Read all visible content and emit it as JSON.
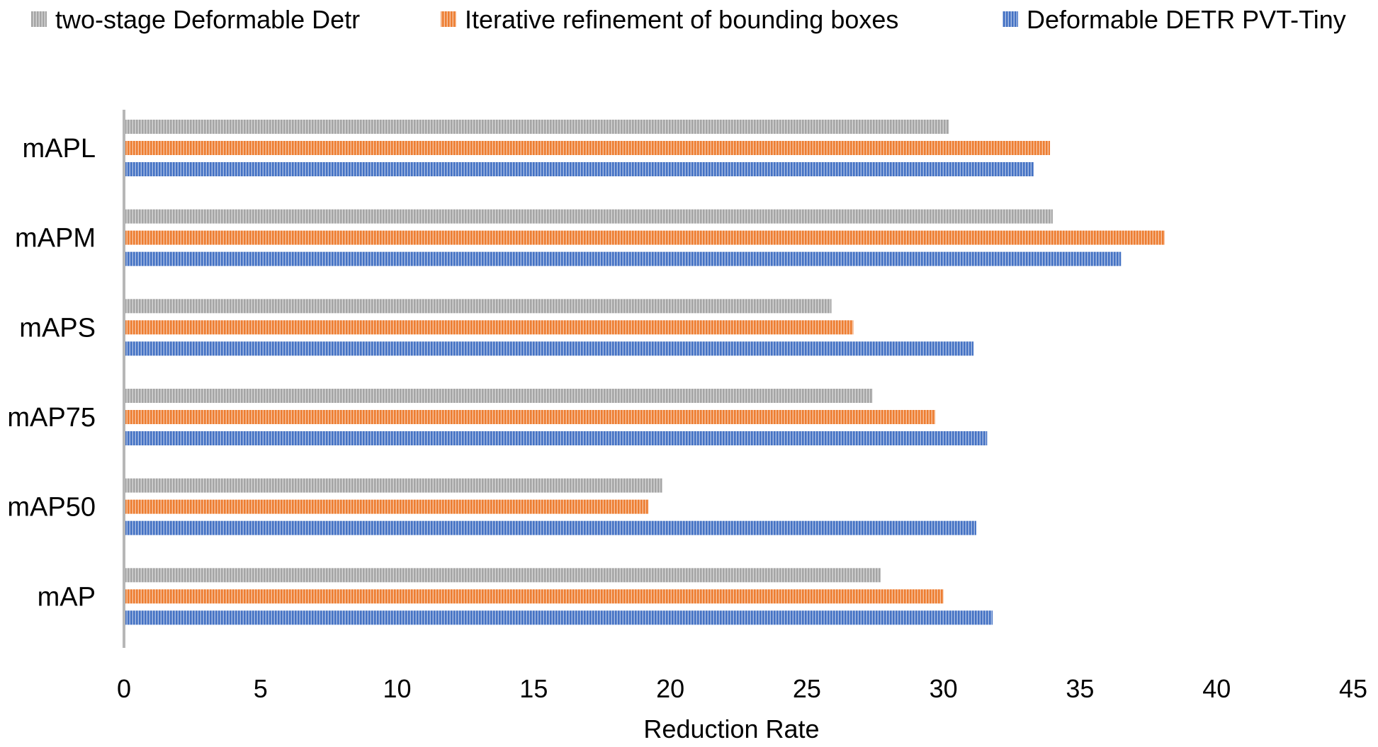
{
  "chart_data": {
    "type": "bar",
    "orientation": "horizontal",
    "title": "",
    "xlabel": "Reduction Rate",
    "ylabel": "",
    "xlim": [
      0,
      45
    ],
    "x_ticks": [
      0,
      5,
      10,
      15,
      20,
      25,
      30,
      35,
      40,
      45
    ],
    "grid": false,
    "legend_position": "top",
    "categories": [
      "mAPL",
      "mAPM",
      "mAPS",
      "mAP75",
      "mAP50",
      "mAP"
    ],
    "series": [
      {
        "name": "two-stage Deformable Detr",
        "color": "#a5a5a5",
        "values": [
          30.2,
          34.0,
          25.9,
          27.4,
          19.7,
          27.7
        ]
      },
      {
        "name": "Iterative refinement of bounding boxes",
        "color": "#ed7d31",
        "values": [
          33.9,
          38.1,
          26.7,
          29.7,
          19.2,
          30.0
        ]
      },
      {
        "name": "Deformable DETR PVT-Tiny",
        "color": "#4472c4",
        "values": [
          33.3,
          36.5,
          31.1,
          31.6,
          31.2,
          31.8
        ]
      }
    ]
  }
}
